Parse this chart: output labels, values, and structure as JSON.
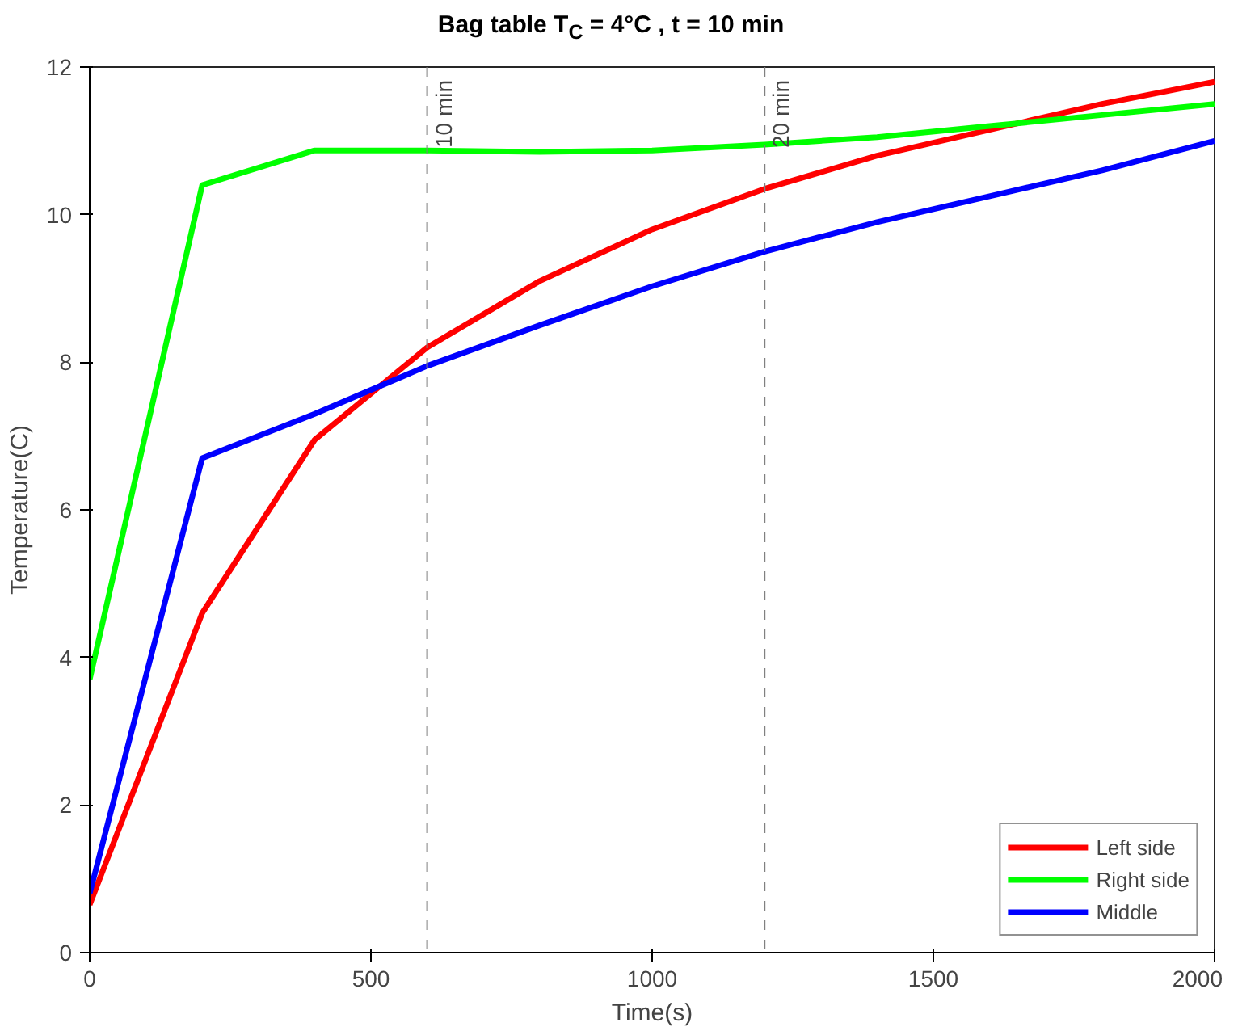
{
  "chart_data": {
    "type": "line",
    "title": "Bag table T$_{C}$ = 4°C , t = 10 min",
    "xlabel": "Time(s)",
    "ylabel": "Temperature(C)",
    "x": [
      0,
      200,
      400,
      600,
      800,
      1000,
      1200,
      1400,
      1600,
      1800,
      2000
    ],
    "series": [
      {
        "name": "Left side",
        "color": "#ff0000",
        "values": [
          0.65,
          4.6,
          6.95,
          8.2,
          9.1,
          9.8,
          10.35,
          10.8,
          11.15,
          11.5,
          11.8
        ]
      },
      {
        "name": "Right side",
        "color": "#00ff00",
        "values": [
          3.7,
          10.4,
          10.87,
          10.87,
          10.85,
          10.87,
          10.95,
          11.05,
          11.2,
          11.35,
          11.5
        ]
      },
      {
        "name": "Middle",
        "color": "#0000ff",
        "values": [
          0.8,
          6.7,
          7.3,
          7.95,
          8.5,
          9.03,
          9.5,
          9.9,
          10.25,
          10.6,
          11.0
        ]
      }
    ],
    "xlim": [
      0,
      2000
    ],
    "ylim": [
      0,
      12
    ],
    "xticks": [
      0,
      500,
      1000,
      1500,
      2000
    ],
    "yticks": [
      0,
      2,
      4,
      6,
      8,
      10,
      12
    ],
    "ref_lines": [
      {
        "axis": "x",
        "value": 600,
        "label": "10 min",
        "color": "#808080",
        "line_style": "dashed"
      },
      {
        "axis": "x",
        "value": 1200,
        "label": "20 min",
        "color": "#808080",
        "line_style": "dashed"
      }
    ],
    "grid": false,
    "legend": "bottom right",
    "marker": "none",
    "line_style": "solid"
  }
}
